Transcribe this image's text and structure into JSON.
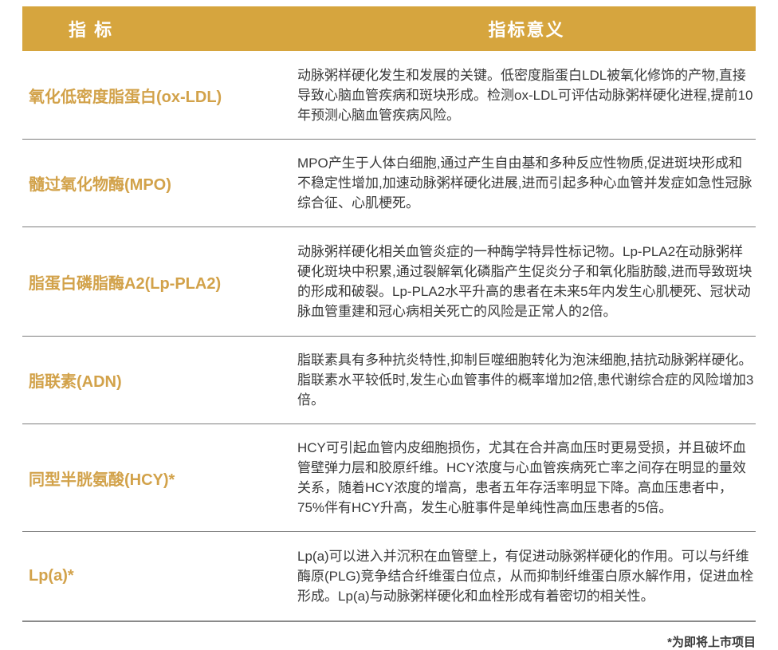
{
  "header": {
    "col1": "指 标",
    "col2": "指标意义"
  },
  "rows": [
    {
      "indicator": "氧化低密度脂蛋白(ox-LDL)",
      "meaning": "动脉粥样硬化发生和发展的关键。低密度脂蛋白LDL被氧化修饰的产物,直接导致心脑血管疾病和斑块形成。检测ox-LDL可评估动脉粥样硬化进程,提前10年预测心脑血管疾病风险。"
    },
    {
      "indicator": "髓过氧化物酶(MPO)",
      "meaning": "MPO产生于人体白细胞,通过产生自由基和多种反应性物质,促进斑块形成和不稳定性增加,加速动脉粥样硬化进展,进而引起多种心血管并发症如急性冠脉综合征、心肌梗死。"
    },
    {
      "indicator": "脂蛋白磷脂酶A2(Lp-PLA2)",
      "meaning": "动脉粥样硬化相关血管炎症的一种酶学特异性标记物。Lp-PLA2在动脉粥样硬化斑块中积累,通过裂解氧化磷脂产生促炎分子和氧化脂肪酸,进而导致斑块的形成和破裂。Lp-PLA2水平升高的患者在未来5年内发生心肌梗死、冠状动脉血管重建和冠心病相关死亡的风险是正常人的2倍。"
    },
    {
      "indicator": "脂联素(ADN)",
      "meaning": "脂联素具有多种抗炎特性,抑制巨噬细胞转化为泡沫细胞,拮抗动脉粥样硬化。脂联素水平较低时,发生心血管事件的概率增加2倍,患代谢综合症的风险增加3倍。"
    },
    {
      "indicator": "同型半胱氨酸(HCY)*",
      "meaning": "HCY可引起血管内皮细胞损伤，尤其在合并高血压时更易受损，并且破坏血管壁弹力层和胶原纤维。HCY浓度与心血管疾病死亡率之间存在明显的量效关系，随着HCY浓度的增高，患者五年存活率明显下降。高血压患者中，75%伴有HCY升高，发生心脏事件是单纯性高血压患者的5倍。"
    },
    {
      "indicator": "Lp(a)*",
      "meaning": "Lp(a)可以进入并沉积在血管壁上，有促进动脉粥样硬化的作用。可以与纤维酶原(PLG)竞争结合纤维蛋白位点，从而抑制纤维蛋白原水解作用，促进血栓形成。Lp(a)与动脉粥样硬化和血栓形成有着密切的相关性。"
    }
  ],
  "footnote": "*为即将上市项目",
  "colors": {
    "header_bg": "#D6A53E",
    "indicator_text": "#D2A24A",
    "body_text": "#3A3A3A",
    "row_separator": "#7D7D7D",
    "bottom_rule": "#8A8A8A",
    "header_text": "#FFFFFF"
  }
}
